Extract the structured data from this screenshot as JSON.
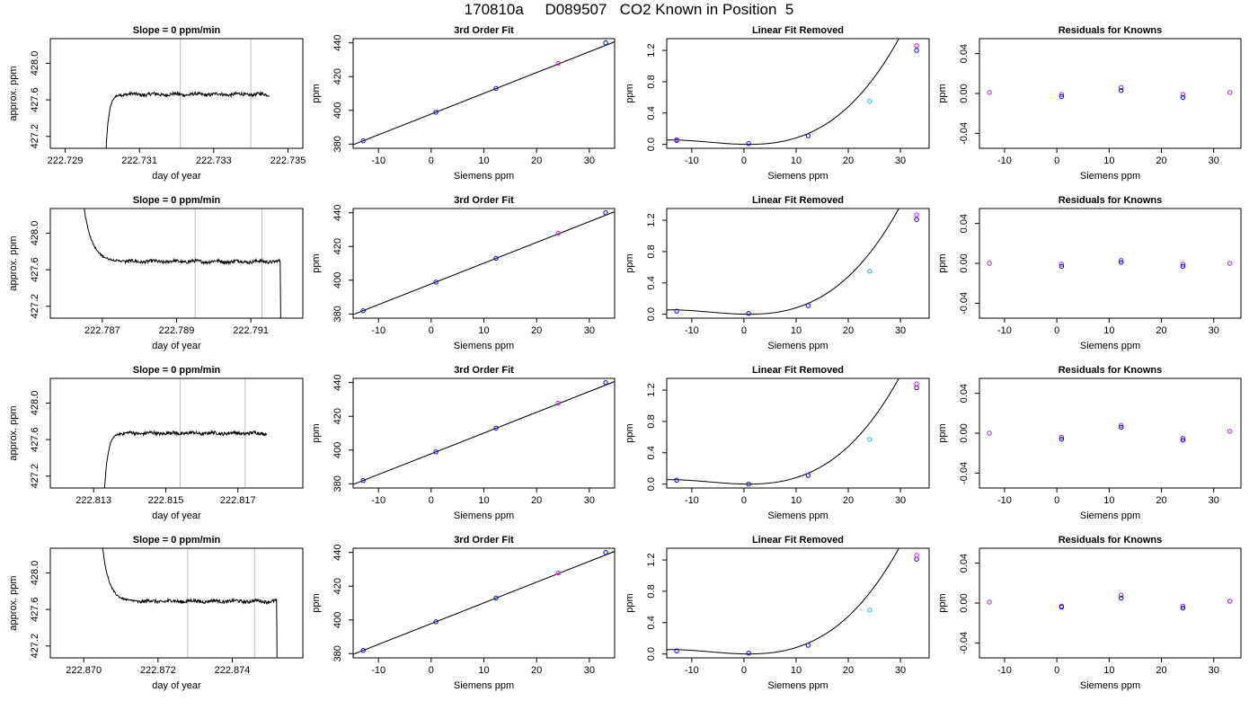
{
  "page": {
    "title": "170810a     D089507   CO2 Known in Position  5"
  },
  "colors": {
    "line": "#000000",
    "grid": "#bebebe",
    "pt_blue": "#0000ff",
    "pt_purple": "#a020f0",
    "pt_magenta": "#ff00ff",
    "pt_cyan": "#00bfff"
  },
  "chart_data": [
    {
      "row": 0,
      "type": "line",
      "title": "Slope =  0  ppm/min",
      "xlabel": "day of year",
      "ylabel": "approx. ppm",
      "xlim": [
        222.7286,
        222.7354
      ],
      "ylim": [
        427.07,
        428.27
      ],
      "xticks": [
        222.729,
        222.731,
        222.733,
        222.735
      ],
      "xtick_labels": [
        "222.729",
        "222.731",
        "222.733",
        "222.735"
      ],
      "yticks": [
        427.2,
        427.6,
        428.0
      ],
      "ytick_labels": [
        "427.2",
        "427.6",
        "428.0"
      ],
      "vlines": [
        222.7321,
        222.734
      ],
      "trace": {
        "start": 222.7301,
        "end": 222.7345,
        "step": 1.3e-05,
        "plateau": 427.66,
        "rise_end": 222.7305,
        "drop_start": 222.7345,
        "jump_end": 428.3,
        "low_start": 427.05
      }
    },
    {
      "row": 0,
      "type": "scatter",
      "title": "3rd Order Fit",
      "xlabel": "Siemens ppm",
      "ylabel": "ppm",
      "xlim": [
        -14.8,
        34.8
      ],
      "ylim": [
        377.5,
        442.5
      ],
      "xticks": [
        -10,
        0,
        10,
        20,
        30
      ],
      "yticks": [
        380,
        400,
        420,
        440
      ],
      "fit": {
        "slope": 1.2305,
        "intercept": 397.8
      },
      "points": [
        {
          "x": -12.9,
          "y": 381.9,
          "c": "blue"
        },
        {
          "x": 0.9,
          "y": 398.9,
          "c": "blue"
        },
        {
          "x": 12.3,
          "y": 413.0,
          "c": "blue"
        },
        {
          "x": 24.1,
          "y": 427.8,
          "c": "magenta"
        },
        {
          "x": 33.1,
          "y": 440.0,
          "c": "blue"
        }
      ]
    },
    {
      "row": 0,
      "type": "scatter",
      "title": "Linear Fit Removed",
      "xlabel": "Siemens ppm",
      "ylabel": "ppm",
      "xlim": [
        -14.8,
        35.5
      ],
      "ylim": [
        -0.05,
        1.35
      ],
      "xticks": [
        -10,
        0,
        10,
        20,
        30
      ],
      "yticks": [
        0.0,
        0.4,
        0.8,
        1.2
      ],
      "curve": {
        "a": 3.17e-05,
        "min_x": 1.0
      },
      "points": [
        {
          "x": -12.9,
          "y": 0.05,
          "c": "blue"
        },
        {
          "x": -12.9,
          "y": 0.06,
          "c": "purple"
        },
        {
          "x": 0.9,
          "y": 0.01,
          "c": "blue"
        },
        {
          "x": 12.3,
          "y": 0.11,
          "c": "blue"
        },
        {
          "x": 24.1,
          "y": 0.55,
          "c": "cyan"
        },
        {
          "x": 33.1,
          "y": 1.2,
          "c": "blue"
        },
        {
          "x": 33.1,
          "y": 1.26,
          "c": "magenta"
        }
      ]
    },
    {
      "row": 0,
      "type": "scatter",
      "title": "Residuals for Knowns",
      "xlabel": "Siemens ppm",
      "ylabel": "ppm",
      "xlim": [
        -14.8,
        35.2
      ],
      "ylim": [
        -0.055,
        0.055
      ],
      "xticks": [
        -10,
        0,
        10,
        20,
        30
      ],
      "yticks": [
        -0.04,
        0.0,
        0.04
      ],
      "points": [
        {
          "x": -12.9,
          "y": 0.001,
          "c": "purple"
        },
        {
          "x": 0.9,
          "y": -0.001,
          "c": "purple"
        },
        {
          "x": 0.9,
          "y": -0.003,
          "c": "blue"
        },
        {
          "x": 12.3,
          "y": 0.006,
          "c": "purple"
        },
        {
          "x": 12.3,
          "y": 0.003,
          "c": "blue"
        },
        {
          "x": 24.1,
          "y": -0.001,
          "c": "purple"
        },
        {
          "x": 24.1,
          "y": -0.004,
          "c": "blue"
        },
        {
          "x": 33.1,
          "y": 0.001,
          "c": "purple"
        }
      ]
    },
    {
      "row": 1,
      "type": "line",
      "title": "Slope =  0  ppm/min",
      "xlabel": "day of year",
      "ylabel": "approx. ppm",
      "xlim": [
        222.7856,
        222.7924
      ],
      "ylim": [
        427.07,
        428.27
      ],
      "xticks": [
        222.787,
        222.789,
        222.791
      ],
      "xtick_labels": [
        "222.787",
        "222.789",
        "222.791"
      ],
      "yticks": [
        427.2,
        427.6,
        428.0
      ],
      "ytick_labels": [
        "427.2",
        "427.6",
        "428.0"
      ],
      "vlines": [
        222.7895,
        222.7913
      ],
      "trace": {
        "start": 222.7865,
        "end": 222.7919,
        "step": 1.3e-05,
        "plateau": 427.69,
        "decay_start": 428.3,
        "decay_end": 222.7876,
        "drop_start": 222.7918,
        "low_end": 427.05
      }
    },
    {
      "row": 1,
      "type": "scatter",
      "title": "3rd Order Fit",
      "xlabel": "Siemens ppm",
      "ylabel": "ppm",
      "xlim": [
        -14.8,
        34.8
      ],
      "ylim": [
        377.5,
        442.5
      ],
      "xticks": [
        -10,
        0,
        10,
        20,
        30
      ],
      "yticks": [
        380,
        400,
        420,
        440
      ],
      "fit": {
        "slope": 1.2305,
        "intercept": 397.8
      },
      "points": [
        {
          "x": -12.9,
          "y": 381.9,
          "c": "blue"
        },
        {
          "x": 0.9,
          "y": 398.9,
          "c": "blue"
        },
        {
          "x": 12.3,
          "y": 413.0,
          "c": "blue"
        },
        {
          "x": 24.1,
          "y": 427.8,
          "c": "magenta"
        },
        {
          "x": 33.1,
          "y": 440.0,
          "c": "blue"
        }
      ]
    },
    {
      "row": 1,
      "type": "scatter",
      "title": "Linear Fit Removed",
      "xlabel": "Siemens ppm",
      "ylabel": "ppm",
      "xlim": [
        -14.8,
        35.5
      ],
      "ylim": [
        -0.05,
        1.35
      ],
      "xticks": [
        -10,
        0,
        10,
        20,
        30
      ],
      "yticks": [
        0.0,
        0.4,
        0.8,
        1.2
      ],
      "curve": {
        "a": 3.17e-05,
        "min_x": 1.0
      },
      "points": [
        {
          "x": -12.9,
          "y": 0.04,
          "c": "blue"
        },
        {
          "x": 0.9,
          "y": 0.01,
          "c": "blue"
        },
        {
          "x": 12.3,
          "y": 0.11,
          "c": "blue"
        },
        {
          "x": 24.1,
          "y": 0.55,
          "c": "cyan"
        },
        {
          "x": 33.1,
          "y": 1.21,
          "c": "blue"
        },
        {
          "x": 33.1,
          "y": 1.27,
          "c": "magenta"
        }
      ]
    },
    {
      "row": 1,
      "type": "scatter",
      "title": "Residuals for Knowns",
      "xlabel": "Siemens ppm",
      "ylabel": "ppm",
      "xlim": [
        -14.8,
        35.2
      ],
      "ylim": [
        -0.055,
        0.055
      ],
      "xticks": [
        -10,
        0,
        10,
        20,
        30
      ],
      "yticks": [
        -0.04,
        0.0,
        0.04
      ],
      "points": [
        {
          "x": -12.9,
          "y": 0.0,
          "c": "purple"
        },
        {
          "x": 0.9,
          "y": -0.001,
          "c": "purple"
        },
        {
          "x": 0.9,
          "y": -0.003,
          "c": "blue"
        },
        {
          "x": 12.3,
          "y": 0.003,
          "c": "purple"
        },
        {
          "x": 12.3,
          "y": 0.001,
          "c": "blue"
        },
        {
          "x": 24.1,
          "y": -0.001,
          "c": "purple"
        },
        {
          "x": 24.1,
          "y": -0.003,
          "c": "blue"
        },
        {
          "x": 33.1,
          "y": 0.0,
          "c": "purple"
        }
      ]
    },
    {
      "row": 2,
      "type": "line",
      "title": "Slope =  0  ppm/min",
      "xlabel": "day of year",
      "ylabel": "approx. ppm",
      "xlim": [
        222.8118,
        222.8188
      ],
      "ylim": [
        427.07,
        428.27
      ],
      "xticks": [
        222.813,
        222.815,
        222.817
      ],
      "xtick_labels": [
        "222.813",
        "222.815",
        "222.817"
      ],
      "yticks": [
        427.2,
        427.6,
        428.0
      ],
      "ytick_labels": [
        "427.2",
        "427.6",
        "428.0"
      ],
      "vlines": [
        222.8154,
        222.8172
      ],
      "trace": {
        "start": 222.8133,
        "end": 222.8178,
        "step": 1.3e-05,
        "plateau": 427.67,
        "rise_end": 222.8138,
        "drop_start": 222.8178,
        "jump_end": 428.3,
        "low_start": 427.05
      }
    },
    {
      "row": 2,
      "type": "scatter",
      "title": "3rd Order Fit",
      "xlabel": "Siemens ppm",
      "ylabel": "ppm",
      "xlim": [
        -14.8,
        34.8
      ],
      "ylim": [
        377.5,
        442.5
      ],
      "xticks": [
        -10,
        0,
        10,
        20,
        30
      ],
      "yticks": [
        380,
        400,
        420,
        440
      ],
      "fit": {
        "slope": 1.2305,
        "intercept": 397.8
      },
      "points": [
        {
          "x": -12.9,
          "y": 381.9,
          "c": "blue"
        },
        {
          "x": 0.9,
          "y": 398.9,
          "c": "blue"
        },
        {
          "x": 12.3,
          "y": 413.0,
          "c": "blue"
        },
        {
          "x": 24.1,
          "y": 427.8,
          "c": "magenta"
        },
        {
          "x": 33.1,
          "y": 440.0,
          "c": "blue"
        }
      ]
    },
    {
      "row": 2,
      "type": "scatter",
      "title": "Linear Fit Removed",
      "xlabel": "Siemens ppm",
      "ylabel": "ppm",
      "xlim": [
        -14.8,
        35.5
      ],
      "ylim": [
        -0.05,
        1.35
      ],
      "xticks": [
        -10,
        0,
        10,
        20,
        30
      ],
      "yticks": [
        0.0,
        0.4,
        0.8,
        1.2
      ],
      "curve": {
        "a": 3.17e-05,
        "min_x": 1.0
      },
      "points": [
        {
          "x": -12.9,
          "y": 0.05,
          "c": "blue"
        },
        {
          "x": 0.9,
          "y": 0.0,
          "c": "blue"
        },
        {
          "x": 12.3,
          "y": 0.11,
          "c": "blue"
        },
        {
          "x": 24.1,
          "y": 0.57,
          "c": "cyan"
        },
        {
          "x": 33.1,
          "y": 1.23,
          "c": "blue"
        },
        {
          "x": 33.1,
          "y": 1.28,
          "c": "magenta"
        }
      ]
    },
    {
      "row": 2,
      "type": "scatter",
      "title": "Residuals for Knowns",
      "xlabel": "Siemens ppm",
      "ylabel": "ppm",
      "xlim": [
        -14.8,
        35.2
      ],
      "ylim": [
        -0.055,
        0.055
      ],
      "xticks": [
        -10,
        0,
        10,
        20,
        30
      ],
      "yticks": [
        -0.04,
        0.0,
        0.04
      ],
      "points": [
        {
          "x": -12.9,
          "y": 0.0,
          "c": "purple"
        },
        {
          "x": 0.9,
          "y": -0.004,
          "c": "purple"
        },
        {
          "x": 0.9,
          "y": -0.006,
          "c": "blue"
        },
        {
          "x": 12.3,
          "y": 0.008,
          "c": "purple"
        },
        {
          "x": 12.3,
          "y": 0.006,
          "c": "blue"
        },
        {
          "x": 24.1,
          "y": -0.005,
          "c": "purple"
        },
        {
          "x": 24.1,
          "y": -0.007,
          "c": "blue"
        },
        {
          "x": 33.1,
          "y": 0.002,
          "c": "purple"
        }
      ]
    },
    {
      "row": 3,
      "type": "line",
      "title": "Slope =  0  ppm/min",
      "xlabel": "day of year",
      "ylabel": "approx. ppm",
      "xlim": [
        222.8691,
        222.8759
      ],
      "ylim": [
        427.07,
        428.27
      ],
      "xticks": [
        222.87,
        222.872,
        222.874
      ],
      "xtick_labels": [
        "222.870",
        "222.872",
        "222.874"
      ],
      "yticks": [
        427.2,
        427.6,
        428.0
      ],
      "ytick_labels": [
        "427.2",
        "427.6",
        "428.0"
      ],
      "vlines": [
        222.8728,
        222.8746
      ],
      "trace": {
        "start": 222.8705,
        "end": 222.8753,
        "step": 1.3e-05,
        "plateau": 427.69,
        "decay_start": 428.3,
        "decay_end": 222.8714,
        "drop_start": 222.8752,
        "low_end": 427.05
      }
    },
    {
      "row": 3,
      "type": "scatter",
      "title": "3rd Order Fit",
      "xlabel": "Siemens ppm",
      "ylabel": "ppm",
      "xlim": [
        -14.8,
        34.8
      ],
      "ylim": [
        377.5,
        442.5
      ],
      "xticks": [
        -10,
        0,
        10,
        20,
        30
      ],
      "yticks": [
        380,
        400,
        420,
        440
      ],
      "fit": {
        "slope": 1.2305,
        "intercept": 397.8
      },
      "points": [
        {
          "x": -12.9,
          "y": 381.9,
          "c": "blue"
        },
        {
          "x": 0.9,
          "y": 398.9,
          "c": "blue"
        },
        {
          "x": 12.3,
          "y": 413.0,
          "c": "blue"
        },
        {
          "x": 24.1,
          "y": 427.8,
          "c": "magenta"
        },
        {
          "x": 33.1,
          "y": 440.0,
          "c": "blue"
        }
      ]
    },
    {
      "row": 3,
      "type": "scatter",
      "title": "Linear Fit Removed",
      "xlabel": "Siemens ppm",
      "ylabel": "ppm",
      "xlim": [
        -14.8,
        35.5
      ],
      "ylim": [
        -0.05,
        1.35
      ],
      "xticks": [
        -10,
        0,
        10,
        20,
        30
      ],
      "yticks": [
        0.0,
        0.4,
        0.8,
        1.2
      ],
      "curve": {
        "a": 3.17e-05,
        "min_x": 1.0
      },
      "points": [
        {
          "x": -12.9,
          "y": 0.04,
          "c": "blue"
        },
        {
          "x": 0.9,
          "y": 0.01,
          "c": "blue"
        },
        {
          "x": 12.3,
          "y": 0.11,
          "c": "blue"
        },
        {
          "x": 24.1,
          "y": 0.56,
          "c": "cyan"
        },
        {
          "x": 33.1,
          "y": 1.21,
          "c": "blue"
        },
        {
          "x": 33.1,
          "y": 1.26,
          "c": "magenta"
        }
      ]
    },
    {
      "row": 3,
      "type": "scatter",
      "title": "Residuals for Knowns",
      "xlabel": "Siemens ppm",
      "ylabel": "ppm",
      "xlim": [
        -14.8,
        35.2
      ],
      "ylim": [
        -0.055,
        0.055
      ],
      "xticks": [
        -10,
        0,
        10,
        20,
        30
      ],
      "yticks": [
        -0.04,
        0.0,
        0.04
      ],
      "points": [
        {
          "x": -12.9,
          "y": 0.001,
          "c": "purple"
        },
        {
          "x": 0.9,
          "y": -0.003,
          "c": "purple"
        },
        {
          "x": 0.9,
          "y": -0.004,
          "c": "blue"
        },
        {
          "x": 12.3,
          "y": 0.008,
          "c": "purple"
        },
        {
          "x": 12.3,
          "y": 0.005,
          "c": "blue"
        },
        {
          "x": 24.1,
          "y": -0.003,
          "c": "purple"
        },
        {
          "x": 24.1,
          "y": -0.005,
          "c": "blue"
        },
        {
          "x": 33.1,
          "y": 0.002,
          "c": "purple"
        }
      ]
    }
  ]
}
